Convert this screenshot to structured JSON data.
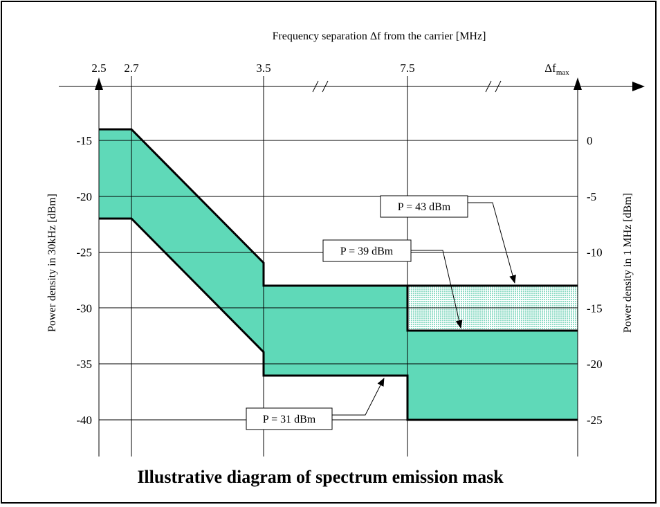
{
  "chart_data": {
    "type": "area",
    "title": "Illustrative diagram of spectrum emission mask",
    "top_axis_label": "Frequency separation Δf from the carrier [MHz]",
    "left_axis_label": "Power density in 30kHz [dBm]",
    "right_axis_label": "Power density in 1 MHz [dBm]",
    "x_ticks": [
      "2.5",
      "2.7",
      "3.5",
      "7.5",
      "Δf"
    ],
    "x_tick_sub": "max",
    "x_axis_breaks": 2,
    "left_ticks": [
      -15,
      -20,
      -25,
      -30,
      -35,
      -40
    ],
    "right_ticks": [
      0,
      -5,
      -10,
      -15,
      -20,
      -25
    ],
    "ylim_left": [
      -42,
      -13
    ],
    "fill_color": "#5fd9b8",
    "fill_color_light": "#bfeedd",
    "upper_limit_43dBm": [
      {
        "x": "2.5",
        "y": -14
      },
      {
        "x": "2.7",
        "y": -14
      },
      {
        "x": "3.5",
        "y": -26
      },
      {
        "x": "3.5",
        "y": -28
      },
      {
        "x": "Δfmax",
        "y": -28
      }
    ],
    "limit_39dBm": [
      {
        "x": "7.5",
        "y": -28
      },
      {
        "x": "7.5",
        "y": -32
      },
      {
        "x": "Δfmax",
        "y": -32
      }
    ],
    "lower_limit_31dBm": [
      {
        "x": "2.5",
        "y": -22
      },
      {
        "x": "2.7",
        "y": -22
      },
      {
        "x": "3.5",
        "y": -34
      },
      {
        "x": "3.5",
        "y": -36
      },
      {
        "x": "7.5",
        "y": -36
      },
      {
        "x": "7.5",
        "y": -40
      },
      {
        "x": "Δfmax",
        "y": -40
      }
    ],
    "annotations": [
      "P = 43 dBm",
      "P = 39 dBm",
      "P = 31 dBm"
    ]
  }
}
